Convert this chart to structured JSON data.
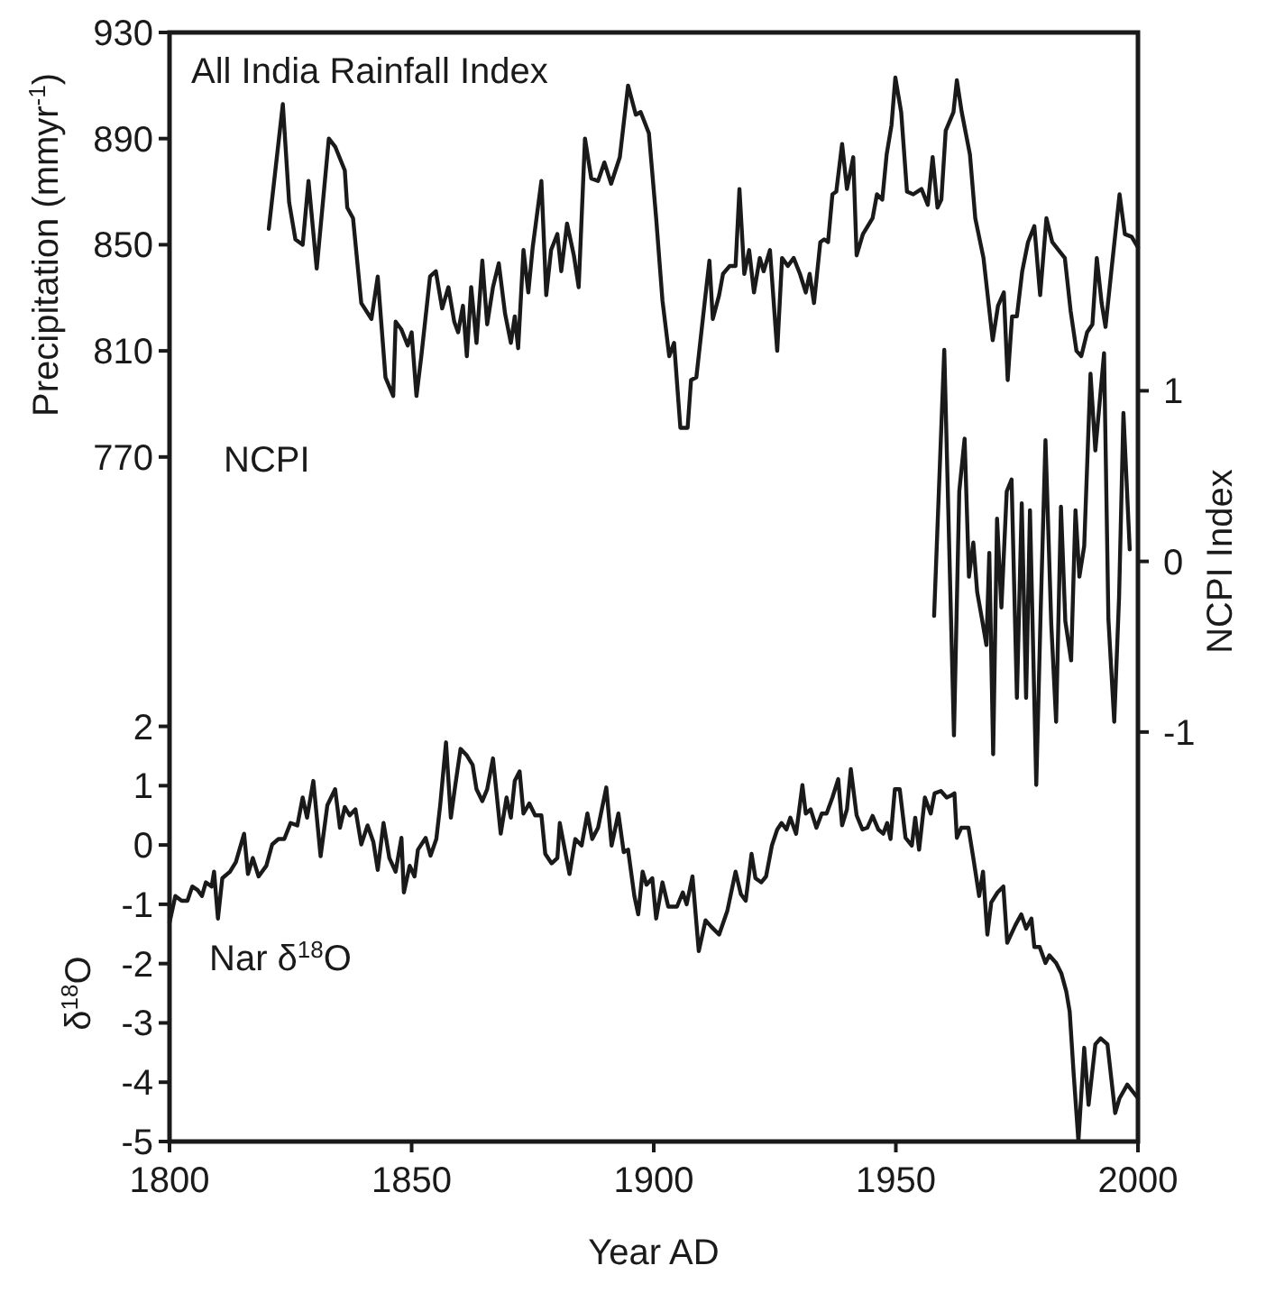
{
  "chart_data": {
    "type": "line",
    "xlabel": "Year AD",
    "ylabel": "Precipitation (mmyr$^{-1}$)",
    "y2label": "NCPI Index",
    "y3label": "δ$^{18}$O",
    "xlim": [
      1800,
      2000
    ],
    "xticks": [
      1800,
      1850,
      1900,
      1950,
      2000
    ],
    "ylim": [
      512,
      930
    ],
    "yticks": [
      770,
      810,
      850,
      890,
      930
    ],
    "y2lim": [
      -3.4,
      3.1
    ],
    "y2ticks": [
      -1,
      0,
      1
    ],
    "y3lim": [
      -5,
      13.7
    ],
    "y3ticks": [
      -5,
      -4,
      -3,
      -2,
      -1,
      0,
      1,
      2
    ],
    "annotations": [
      "NCPI"
    ],
    "grid": false,
    "marker": "none",
    "line_style": "solid",
    "series": [
      {
        "name": "All India Rainfall Index",
        "color": "#1a1a1a",
        "axis": "y",
        "x": [
          1820.5,
          1823.4,
          1824.7,
          1826,
          1827.5,
          1828.7,
          1830.4,
          1832.9,
          1834.2,
          1836.2,
          1836.7,
          1837.9,
          1839.6,
          1841.7,
          1843,
          1844.6,
          1846.2,
          1846.7,
          1847.9,
          1849.2,
          1850,
          1851,
          1852,
          1853.8,
          1855,
          1856.3,
          1857.6,
          1858.8,
          1859.6,
          1860.6,
          1861.4,
          1862.3,
          1863.4,
          1864.6,
          1865.6,
          1866.8,
          1868,
          1869.3,
          1870.5,
          1871.3,
          1872,
          1873.1,
          1874.1,
          1875,
          1876.8,
          1877.8,
          1878.8,
          1880.1,
          1880.9,
          1882.1,
          1883.5,
          1884.5,
          1885.8,
          1887.1,
          1888.5,
          1889.8,
          1891.2,
          1893,
          1894.7,
          1896.3,
          1897.3,
          1899,
          1900.5,
          1901.8,
          1903.2,
          1904.2,
          1905.5,
          1907,
          1907.7,
          1908.8,
          1910.5,
          1911.5,
          1912.2,
          1913.5,
          1914.3,
          1915.7,
          1916.9,
          1917.7,
          1918.7,
          1919.7,
          1920.7,
          1921.9,
          1922.7,
          1924,
          1925.5,
          1926.5,
          1927.7,
          1928.9,
          1930.2,
          1931.4,
          1932.2,
          1933.1,
          1934.4,
          1935.2,
          1936,
          1936.9,
          1937.7,
          1938.9,
          1939.9,
          1941.2,
          1941.9,
          1943.2,
          1945.2,
          1946.1,
          1947.2,
          1948.1,
          1949.1,
          1949.9,
          1951.1,
          1952.3,
          1953.6,
          1955.3,
          1956.6,
          1957.6,
          1958.6,
          1959.4,
          1960.3,
          1961.9,
          1962.6,
          1963.6,
          1965.3,
          1966.4,
          1968.1,
          1970,
          1971.1,
          1972.3,
          1973.1,
          1974,
          1975,
          1976.1,
          1977.3,
          1978.6,
          1979.8,
          1981.1,
          1982.3,
          1983.6,
          1984.9,
          1986.1,
          1987.3,
          1988.3,
          1989.5,
          1990.6,
          1991.5,
          1992.5,
          1993.3,
          1994.5,
          1996.2,
          1997.3,
          1998.7,
          2000
        ],
        "values": [
          856,
          903,
          866,
          852,
          850,
          874,
          841,
          890,
          887,
          878,
          864,
          860,
          828,
          822,
          838,
          800,
          793,
          821,
          818,
          812,
          817,
          793,
          808,
          838,
          840,
          826,
          834,
          821,
          817,
          827,
          808,
          834,
          813,
          844,
          820,
          834,
          843,
          824,
          813,
          823,
          811,
          848,
          832,
          849,
          874,
          831,
          848,
          854,
          840,
          858,
          846,
          834,
          890,
          875,
          874,
          881,
          873,
          883,
          910,
          899,
          900,
          892,
          860,
          829,
          808,
          813,
          781,
          781,
          799,
          800,
          828,
          844,
          822,
          831,
          839,
          842,
          842,
          871,
          839,
          848,
          832,
          845,
          840,
          848,
          810,
          845,
          842,
          845,
          839,
          832,
          839,
          828,
          851,
          852,
          851,
          869,
          870,
          888,
          871,
          883,
          846,
          854,
          860,
          869,
          867,
          884,
          895,
          913,
          900,
          870,
          869,
          871,
          865,
          883,
          864,
          867,
          893,
          900,
          912,
          900,
          884,
          860,
          845,
          814,
          827,
          832,
          799,
          823,
          823,
          840,
          851,
          857,
          831,
          860,
          851,
          848,
          845,
          825,
          810,
          808,
          817,
          820,
          845,
          828,
          819,
          840,
          869,
          854,
          853,
          849
        ]
      },
      {
        "color": "#1a1a1a",
        "axis": "y2",
        "x": [
          1957.9,
          1960,
          1962,
          1963.1,
          1964.2,
          1965.1,
          1966,
          1966.8,
          1967.8,
          1968.7,
          1969.3,
          1970.1,
          1970.9,
          1971.8,
          1972.9,
          1973.9,
          1975,
          1976,
          1976.9,
          1977.7,
          1979,
          1979.9,
          1980.9,
          1982.1,
          1983.1,
          1984.1,
          1985,
          1986.2,
          1987.1,
          1987.9,
          1988.9,
          1990.2,
          1991.2,
          1993,
          1993.9,
          1995.1,
          1996.1,
          1997,
          1998.3
        ],
        "values": [
          -0.32,
          1.24,
          -1.02,
          0.41,
          0.72,
          -0.09,
          0.11,
          -0.18,
          -0.34,
          -0.49,
          0.05,
          -1.13,
          0.25,
          -0.27,
          0.41,
          0.48,
          -0.8,
          0.34,
          -0.8,
          0.3,
          -1.31,
          -0.3,
          0.71,
          -0.37,
          -0.94,
          0.32,
          -0.35,
          -0.58,
          0.3,
          -0.09,
          0.09,
          1.1,
          0.65,
          1.22,
          -0.34,
          -0.94,
          -0.21,
          0.87,
          0.07
        ]
      },
      {
        "name": "Nar δ$^{18}$O",
        "color": "#1a1a1a",
        "axis": "y3",
        "x": [
          1800,
          1801.2,
          1802.5,
          1803.7,
          1804.7,
          1805.8,
          1806.7,
          1807.5,
          1808.7,
          1809.2,
          1810,
          1810.9,
          1812.5,
          1813.7,
          1815.4,
          1816.2,
          1817.2,
          1818.4,
          1820,
          1821.2,
          1822.5,
          1823.7,
          1825,
          1826.4,
          1827.5,
          1828.4,
          1829.7,
          1831.2,
          1832.6,
          1834.2,
          1835.2,
          1836.2,
          1837.2,
          1838.4,
          1839.6,
          1840.9,
          1842.1,
          1843,
          1844.2,
          1845.4,
          1846.7,
          1847.9,
          1848.4,
          1849.6,
          1850.6,
          1851.3,
          1852.9,
          1853.9,
          1855.1,
          1855.9,
          1857.1,
          1858.1,
          1858.9,
          1860.1,
          1861.4,
          1862.6,
          1863.4,
          1864.6,
          1865.6,
          1866.8,
          1868.4,
          1869.6,
          1870.5,
          1871.3,
          1872.3,
          1873.1,
          1874.3,
          1875.5,
          1876.8,
          1877.6,
          1878.9,
          1880.1,
          1880.6,
          1882.6,
          1883.8,
          1885.1,
          1886.3,
          1887.3,
          1888.5,
          1890.2,
          1891.3,
          1892.7,
          1893.8,
          1894.7,
          1896,
          1896.8,
          1897.7,
          1898.5,
          1899.7,
          1900.5,
          1901.8,
          1903,
          1904.8,
          1906,
          1906.8,
          1908,
          1909.3,
          1910.7,
          1911.9,
          1913.5,
          1915.2,
          1916.9,
          1918,
          1919,
          1920.2,
          1921,
          1922.2,
          1923.2,
          1924.4,
          1925.5,
          1926.4,
          1927.4,
          1928.2,
          1929.4,
          1930.7,
          1931.4,
          1932.4,
          1933.6,
          1934.7,
          1935.7,
          1936.9,
          1938.1,
          1938.9,
          1939.9,
          1940.7,
          1941.9,
          1943.1,
          1944.1,
          1945.2,
          1946.4,
          1947.4,
          1948.2,
          1948.9,
          1949.8,
          1950.8,
          1952,
          1953.3,
          1954,
          1954.8,
          1956,
          1957.2,
          1958,
          1959.3,
          1960.5,
          1961.3,
          1962.1,
          1962.6,
          1963.5,
          1965,
          1966,
          1967.2,
          1968,
          1968.9,
          1969.7,
          1971,
          1972.2,
          1973,
          1974.7,
          1975.9,
          1976.9,
          1978,
          1978.6,
          1979.7,
          1980.9,
          1981.7,
          1983.1,
          1984.2,
          1985.2,
          1985.9,
          1986.7,
          1987.7,
          1988.9,
          1989.8,
          1991.2,
          1992.3,
          1993.7,
          1995.3,
          1996.2,
          1997.8,
          2000
        ],
        "values": [
          -1.31,
          -0.86,
          -0.94,
          -0.94,
          -0.7,
          -0.76,
          -0.86,
          -0.63,
          -0.7,
          -0.45,
          -1.24,
          -0.56,
          -0.45,
          -0.29,
          0.19,
          -0.49,
          -0.22,
          -0.53,
          -0.35,
          0.01,
          0.1,
          0.1,
          0.37,
          0.33,
          0.8,
          0.46,
          1.08,
          -0.19,
          0.67,
          0.94,
          0.29,
          0.64,
          0.5,
          0.6,
          0.01,
          0.33,
          0.05,
          -0.42,
          0.37,
          -0.22,
          -0.45,
          0.12,
          -0.8,
          -0.35,
          -0.53,
          -0.08,
          0.12,
          -0.18,
          0.1,
          0.67,
          1.73,
          0.46,
          0.94,
          1.62,
          1.51,
          1.35,
          0.94,
          0.74,
          0.94,
          1.46,
          0.19,
          0.8,
          0.46,
          1.08,
          1.24,
          0.53,
          0.7,
          0.5,
          0.5,
          -0.15,
          -0.31,
          -0.22,
          0.37,
          -0.49,
          0.1,
          -0.01,
          0.53,
          0.1,
          0.29,
          0.97,
          -0.01,
          0.53,
          -0.12,
          -0.08,
          -0.86,
          -1.17,
          -0.45,
          -0.67,
          -0.56,
          -1.24,
          -0.63,
          -1.04,
          -1.04,
          -0.8,
          -1,
          -0.53,
          -1.79,
          -1.27,
          -1.38,
          -1.51,
          -1.11,
          -0.45,
          -0.83,
          -0.94,
          -0.15,
          -0.56,
          -0.63,
          -0.53,
          -0.01,
          0.26,
          0.37,
          0.26,
          0.46,
          0.19,
          1.01,
          0.53,
          0.6,
          0.29,
          0.53,
          0.53,
          0.8,
          1.11,
          0.33,
          0.6,
          1.28,
          0.5,
          0.26,
          0.29,
          0.49,
          0.26,
          0.19,
          0.37,
          0.1,
          0.94,
          0.94,
          0.12,
          -0.01,
          0.46,
          -0.08,
          0.8,
          0.53,
          0.87,
          0.91,
          0.8,
          0.83,
          0.87,
          0.12,
          0.29,
          0.29,
          -0.22,
          -0.86,
          -0.45,
          -1.51,
          -0.97,
          -0.8,
          -0.7,
          -1.65,
          -1.35,
          -1.17,
          -1.41,
          -1.24,
          -1.72,
          -1.72,
          -1.99,
          -1.86,
          -1.99,
          -2.17,
          -2.47,
          -2.81,
          -3.83,
          -4.99,
          -3.42,
          -4.38,
          -3.36,
          -3.26,
          -3.36,
          -4.52,
          -4.27,
          -4.04,
          -4.27
        ]
      }
    ]
  }
}
